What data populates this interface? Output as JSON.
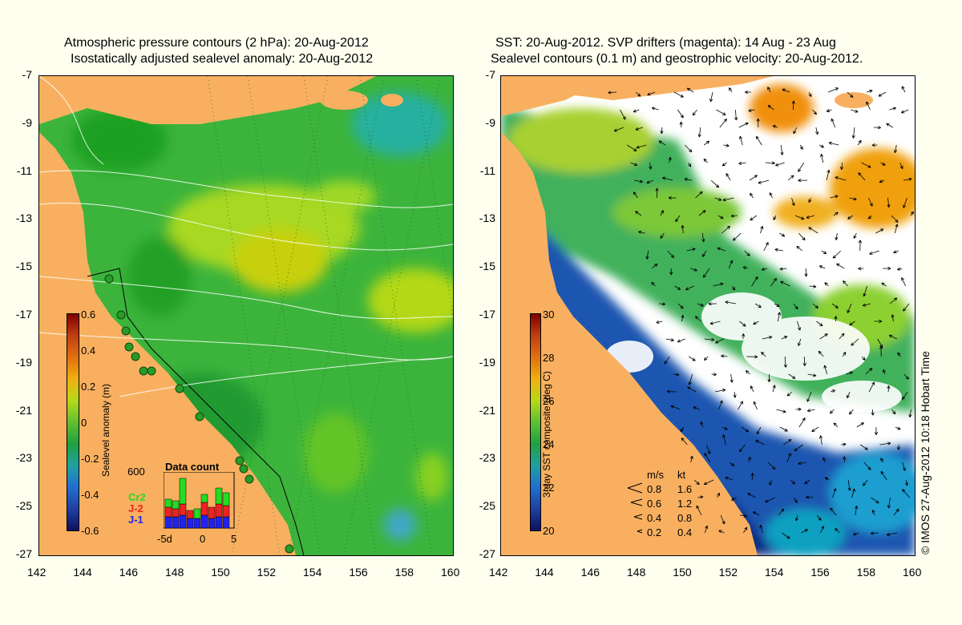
{
  "left_panel": {
    "title_line1": "Atmospheric pressure contours (2 hPa): 20-Aug-2012",
    "title_line2": "Isostatically adjusted sealevel anomaly: 20-Aug-2012",
    "colorbar": {
      "label": "Sealevel anomaly (m)",
      "ticks": [
        "0.6",
        "0.4",
        "0.2",
        "0",
        "-0.2",
        "-0.4",
        "-0.6"
      ]
    },
    "data_count": {
      "title": "Data count",
      "max_label": "600",
      "x_ticks": [
        "-5d",
        "0",
        "5"
      ],
      "series": [
        {
          "name": "Cr2",
          "color": "#22dd22"
        },
        {
          "name": "J-2",
          "color": "#ee2222"
        },
        {
          "name": "J-1",
          "color": "#2222ee"
        }
      ]
    }
  },
  "right_panel": {
    "title_line1": "SST: 20-Aug-2012. SVP drifters (magenta): 14 Aug - 23 Aug",
    "title_line2": "Sealevel contours (0.1 m) and geostrophic velocity: 20-Aug-2012.",
    "colorbar": {
      "label": "3-day SST composite (deg C)",
      "ticks": [
        "30",
        "28",
        "26",
        "24",
        "22",
        "20"
      ]
    },
    "velocity_legend": {
      "header_ms": "m/s",
      "header_kt": "kt",
      "rows": [
        {
          "ms": "0.8",
          "kt": "1.6"
        },
        {
          "ms": "0.6",
          "kt": "1.2"
        },
        {
          "ms": "0.4",
          "kt": "0.8"
        },
        {
          "ms": "0.2",
          "kt": "0.4"
        }
      ]
    }
  },
  "axes": {
    "lat_ticks": [
      "-7",
      "-9",
      "-11",
      "-13",
      "-15",
      "-17",
      "-19",
      "-21",
      "-23",
      "-25",
      "-27"
    ],
    "lon_ticks": [
      "142",
      "144",
      "146",
      "148",
      "150",
      "152",
      "154",
      "156",
      "158",
      "160"
    ]
  },
  "credit": "© IMOS 27-Aug-2012 10:18 Hobart Time",
  "colors": {
    "land": "#f8b060",
    "background": "#fffff0",
    "sla_base": "#3cb43c",
    "sst_cloud": "#ffffff"
  }
}
